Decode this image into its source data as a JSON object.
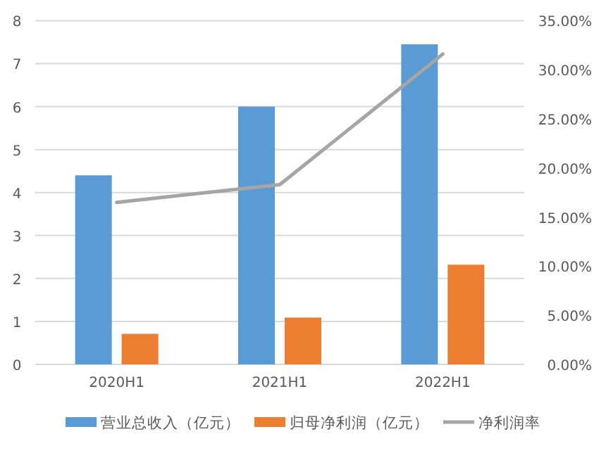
{
  "chart_data": {
    "type": "bar",
    "categories": [
      "2020H1",
      "2021H1",
      "2022H1"
    ],
    "series": [
      {
        "name": "营业总收入（亿元）",
        "color": "#5b9bd5",
        "values": [
          4.4,
          6.0,
          7.45
        ]
      },
      {
        "name": "归母净利润（亿元）",
        "color": "#ed7d31",
        "values": [
          0.71,
          1.09,
          2.32
        ]
      },
      {
        "name": "净利润率",
        "type": "line",
        "axis": "y2",
        "color": "#a5a5a5",
        "values": [
          16.5,
          18.3,
          31.6
        ]
      }
    ],
    "ylim": [
      0,
      8
    ],
    "yticks": [
      0,
      1,
      2,
      3,
      4,
      5,
      6,
      7,
      8
    ],
    "y2lim": [
      0,
      35
    ],
    "y2ticks": [
      {
        "value": 0,
        "label": "0.00%"
      },
      {
        "value": 5,
        "label": "5.00%"
      },
      {
        "value": 10,
        "label": "10.00%"
      },
      {
        "value": 15,
        "label": "15.00%"
      },
      {
        "value": 20,
        "label": "20.00%"
      },
      {
        "value": 25,
        "label": "25.00%"
      },
      {
        "value": 30,
        "label": "30.00%"
      },
      {
        "value": 35,
        "label": "35.00%"
      }
    ],
    "grid": "y",
    "legend": "bottom",
    "marker": "none"
  }
}
